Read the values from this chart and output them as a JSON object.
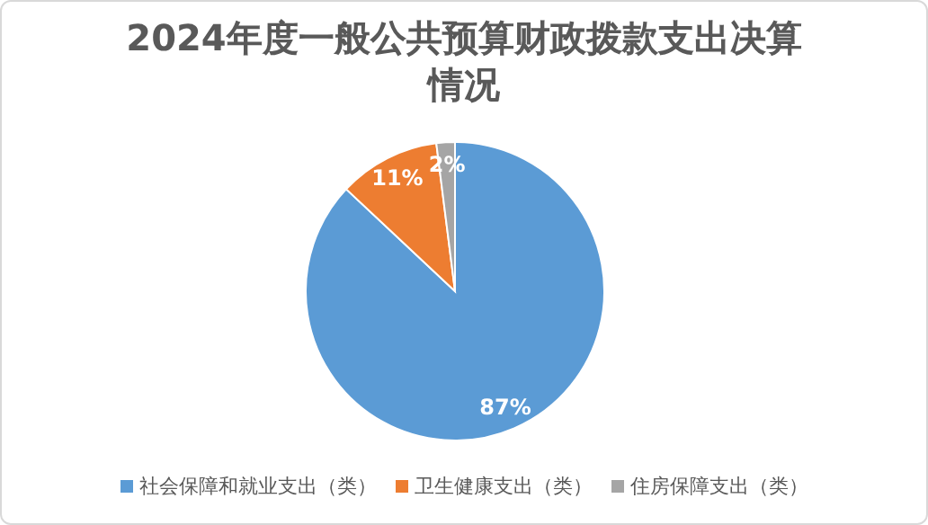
{
  "chart_data": {
    "type": "pie",
    "title": "2024年度一般公共预算财政拨款支出决算情况",
    "categories": [
      "社会保障和就业支出（类）",
      "卫生健康支出（类）",
      "住房保障支出（类）"
    ],
    "values": [
      87,
      11,
      2
    ],
    "colors": [
      "#5b9bd5",
      "#ed7d31",
      "#a5a5a5"
    ],
    "value_labels": [
      "87%",
      "11%",
      "2%"
    ],
    "legend": "bottom"
  }
}
